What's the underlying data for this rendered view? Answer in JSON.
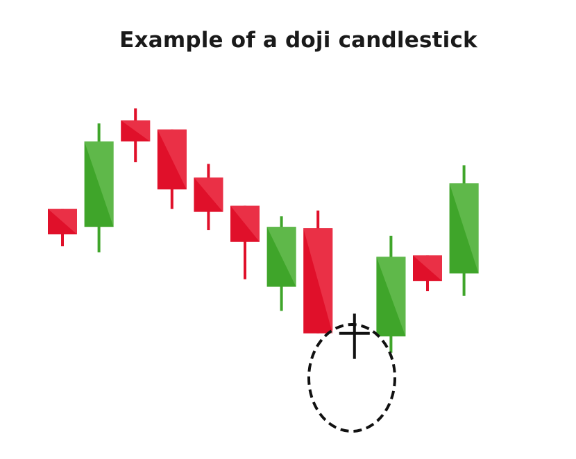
{
  "title": "Example of a doji candlestick",
  "colors": {
    "bullish": "#3fa52a",
    "bullish_light": "#5fb84a",
    "bearish": "#e0102a",
    "bearish_light": "#ea3046",
    "highlight_outline": "#111111",
    "doji": "#111111"
  },
  "chart_data": {
    "type": "candlestick",
    "title": "Example of a doji candlestick",
    "xlabel": "",
    "ylabel": "",
    "ylim": [
      0,
      100
    ],
    "grid": false,
    "annotations": [
      "dashed ellipse around the doji candlestick"
    ],
    "candles": [
      {
        "direction": "bearish",
        "open": 69.2,
        "close": 60.0,
        "high": 69.2,
        "low": 55.7
      },
      {
        "direction": "bullish",
        "open": 62.7,
        "close": 93.5,
        "high": 100.0,
        "low": 53.5
      },
      {
        "direction": "bearish",
        "open": 101.1,
        "close": 93.5,
        "high": 105.4,
        "low": 86.0
      },
      {
        "direction": "bearish",
        "open": 97.8,
        "close": 76.2,
        "high": 97.8,
        "low": 69.2
      },
      {
        "direction": "bearish",
        "open": 80.5,
        "close": 68.1,
        "high": 85.4,
        "low": 61.5
      },
      {
        "direction": "bearish",
        "open": 70.3,
        "close": 57.3,
        "high": 70.3,
        "low": 43.8
      },
      {
        "direction": "bullish",
        "open": 41.1,
        "close": 62.7,
        "high": 66.5,
        "low": 32.4
      },
      {
        "direction": "bearish",
        "open": 62.2,
        "close": 24.3,
        "high": 68.6,
        "low": 24.3
      },
      {
        "direction": "doji",
        "open": 24.3,
        "close": 24.3,
        "high": 31.4,
        "low": 15.1
      },
      {
        "direction": "bullish",
        "open": 23.2,
        "close": 51.9,
        "high": 59.5,
        "low": 17.3
      },
      {
        "direction": "bearish",
        "open": 52.4,
        "close": 43.2,
        "high": 52.4,
        "low": 39.5
      },
      {
        "direction": "bullish",
        "open": 45.9,
        "close": 78.4,
        "high": 84.9,
        "low": 37.8
      }
    ]
  }
}
